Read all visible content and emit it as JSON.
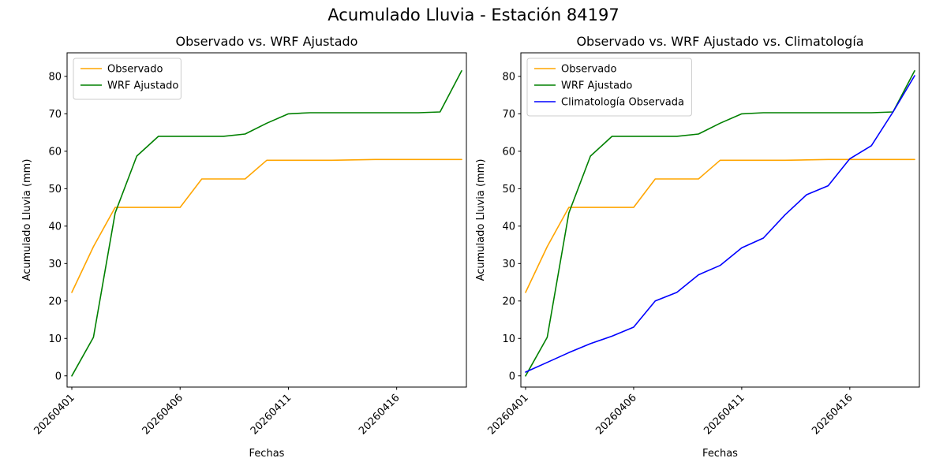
{
  "figure": {
    "title": "Acumulado Lluvia - Estación 84197"
  },
  "chart_data": [
    {
      "type": "line",
      "title": "Observado vs. WRF Ajustado",
      "xlabel": "Fechas",
      "ylabel": "Acumulado Lluvia (mm)",
      "legend_position": "upper-left",
      "grid": false,
      "x": [
        "20260401",
        "20260402",
        "20260403",
        "20260404",
        "20260405",
        "20260406",
        "20260407",
        "20260408",
        "20260409",
        "20260410",
        "20260411",
        "20260412",
        "20260413",
        "20260414",
        "20260415",
        "20260416",
        "20260417",
        "20260418",
        "20260419"
      ],
      "xtick_indices": [
        0,
        5,
        10,
        15
      ],
      "yticks": [
        0,
        10,
        20,
        30,
        40,
        50,
        60,
        70,
        80
      ],
      "ylim": [
        -3,
        86.3
      ],
      "series": [
        {
          "name": "Observado",
          "color": "#ffa500",
          "values": [
            22.3,
            34.5,
            45,
            45,
            45,
            45,
            52.6,
            52.6,
            52.6,
            57.6,
            57.6,
            57.6,
            57.6,
            57.7,
            57.8,
            57.8,
            57.8,
            57.8,
            57.8
          ]
        },
        {
          "name": "WRF Ajustado",
          "color": "#008000",
          "values": [
            0,
            10.3,
            43.5,
            58.7,
            64,
            64,
            64,
            64,
            64.6,
            67.5,
            70,
            70.3,
            70.3,
            70.3,
            70.3,
            70.3,
            70.3,
            70.5,
            81.5
          ]
        }
      ]
    },
    {
      "type": "line",
      "title": "Observado vs. WRF Ajustado vs. Climatología",
      "xlabel": "Fechas",
      "ylabel": "Acumulado Lluvia (mm)",
      "legend_position": "upper-left",
      "grid": false,
      "x": [
        "20260401",
        "20260402",
        "20260403",
        "20260404",
        "20260405",
        "20260406",
        "20260407",
        "20260408",
        "20260409",
        "20260410",
        "20260411",
        "20260412",
        "20260413",
        "20260414",
        "20260415",
        "20260416",
        "20260417",
        "20260418",
        "20260419"
      ],
      "xtick_indices": [
        0,
        5,
        10,
        15
      ],
      "yticks": [
        0,
        10,
        20,
        30,
        40,
        50,
        60,
        70,
        80
      ],
      "ylim": [
        -3,
        86.3
      ],
      "series": [
        {
          "name": "Observado",
          "color": "#ffa500",
          "values": [
            22.3,
            34.5,
            45,
            45,
            45,
            45,
            52.6,
            52.6,
            52.6,
            57.6,
            57.6,
            57.6,
            57.6,
            57.7,
            57.8,
            57.8,
            57.8,
            57.8,
            57.8
          ]
        },
        {
          "name": "WRF Ajustado",
          "color": "#008000",
          "values": [
            0,
            10.3,
            43.5,
            58.7,
            64,
            64,
            64,
            64,
            64.6,
            67.5,
            70,
            70.3,
            70.3,
            70.3,
            70.3,
            70.3,
            70.3,
            70.5,
            81.5
          ]
        },
        {
          "name": "Climatología Observada",
          "color": "#0000ff",
          "values": [
            1,
            3.6,
            6.2,
            8.6,
            10.6,
            13,
            20,
            22.3,
            27,
            29.5,
            34.2,
            36.8,
            43,
            48.4,
            50.8,
            58,
            61.5,
            70.5,
            80.2
          ]
        }
      ]
    }
  ]
}
